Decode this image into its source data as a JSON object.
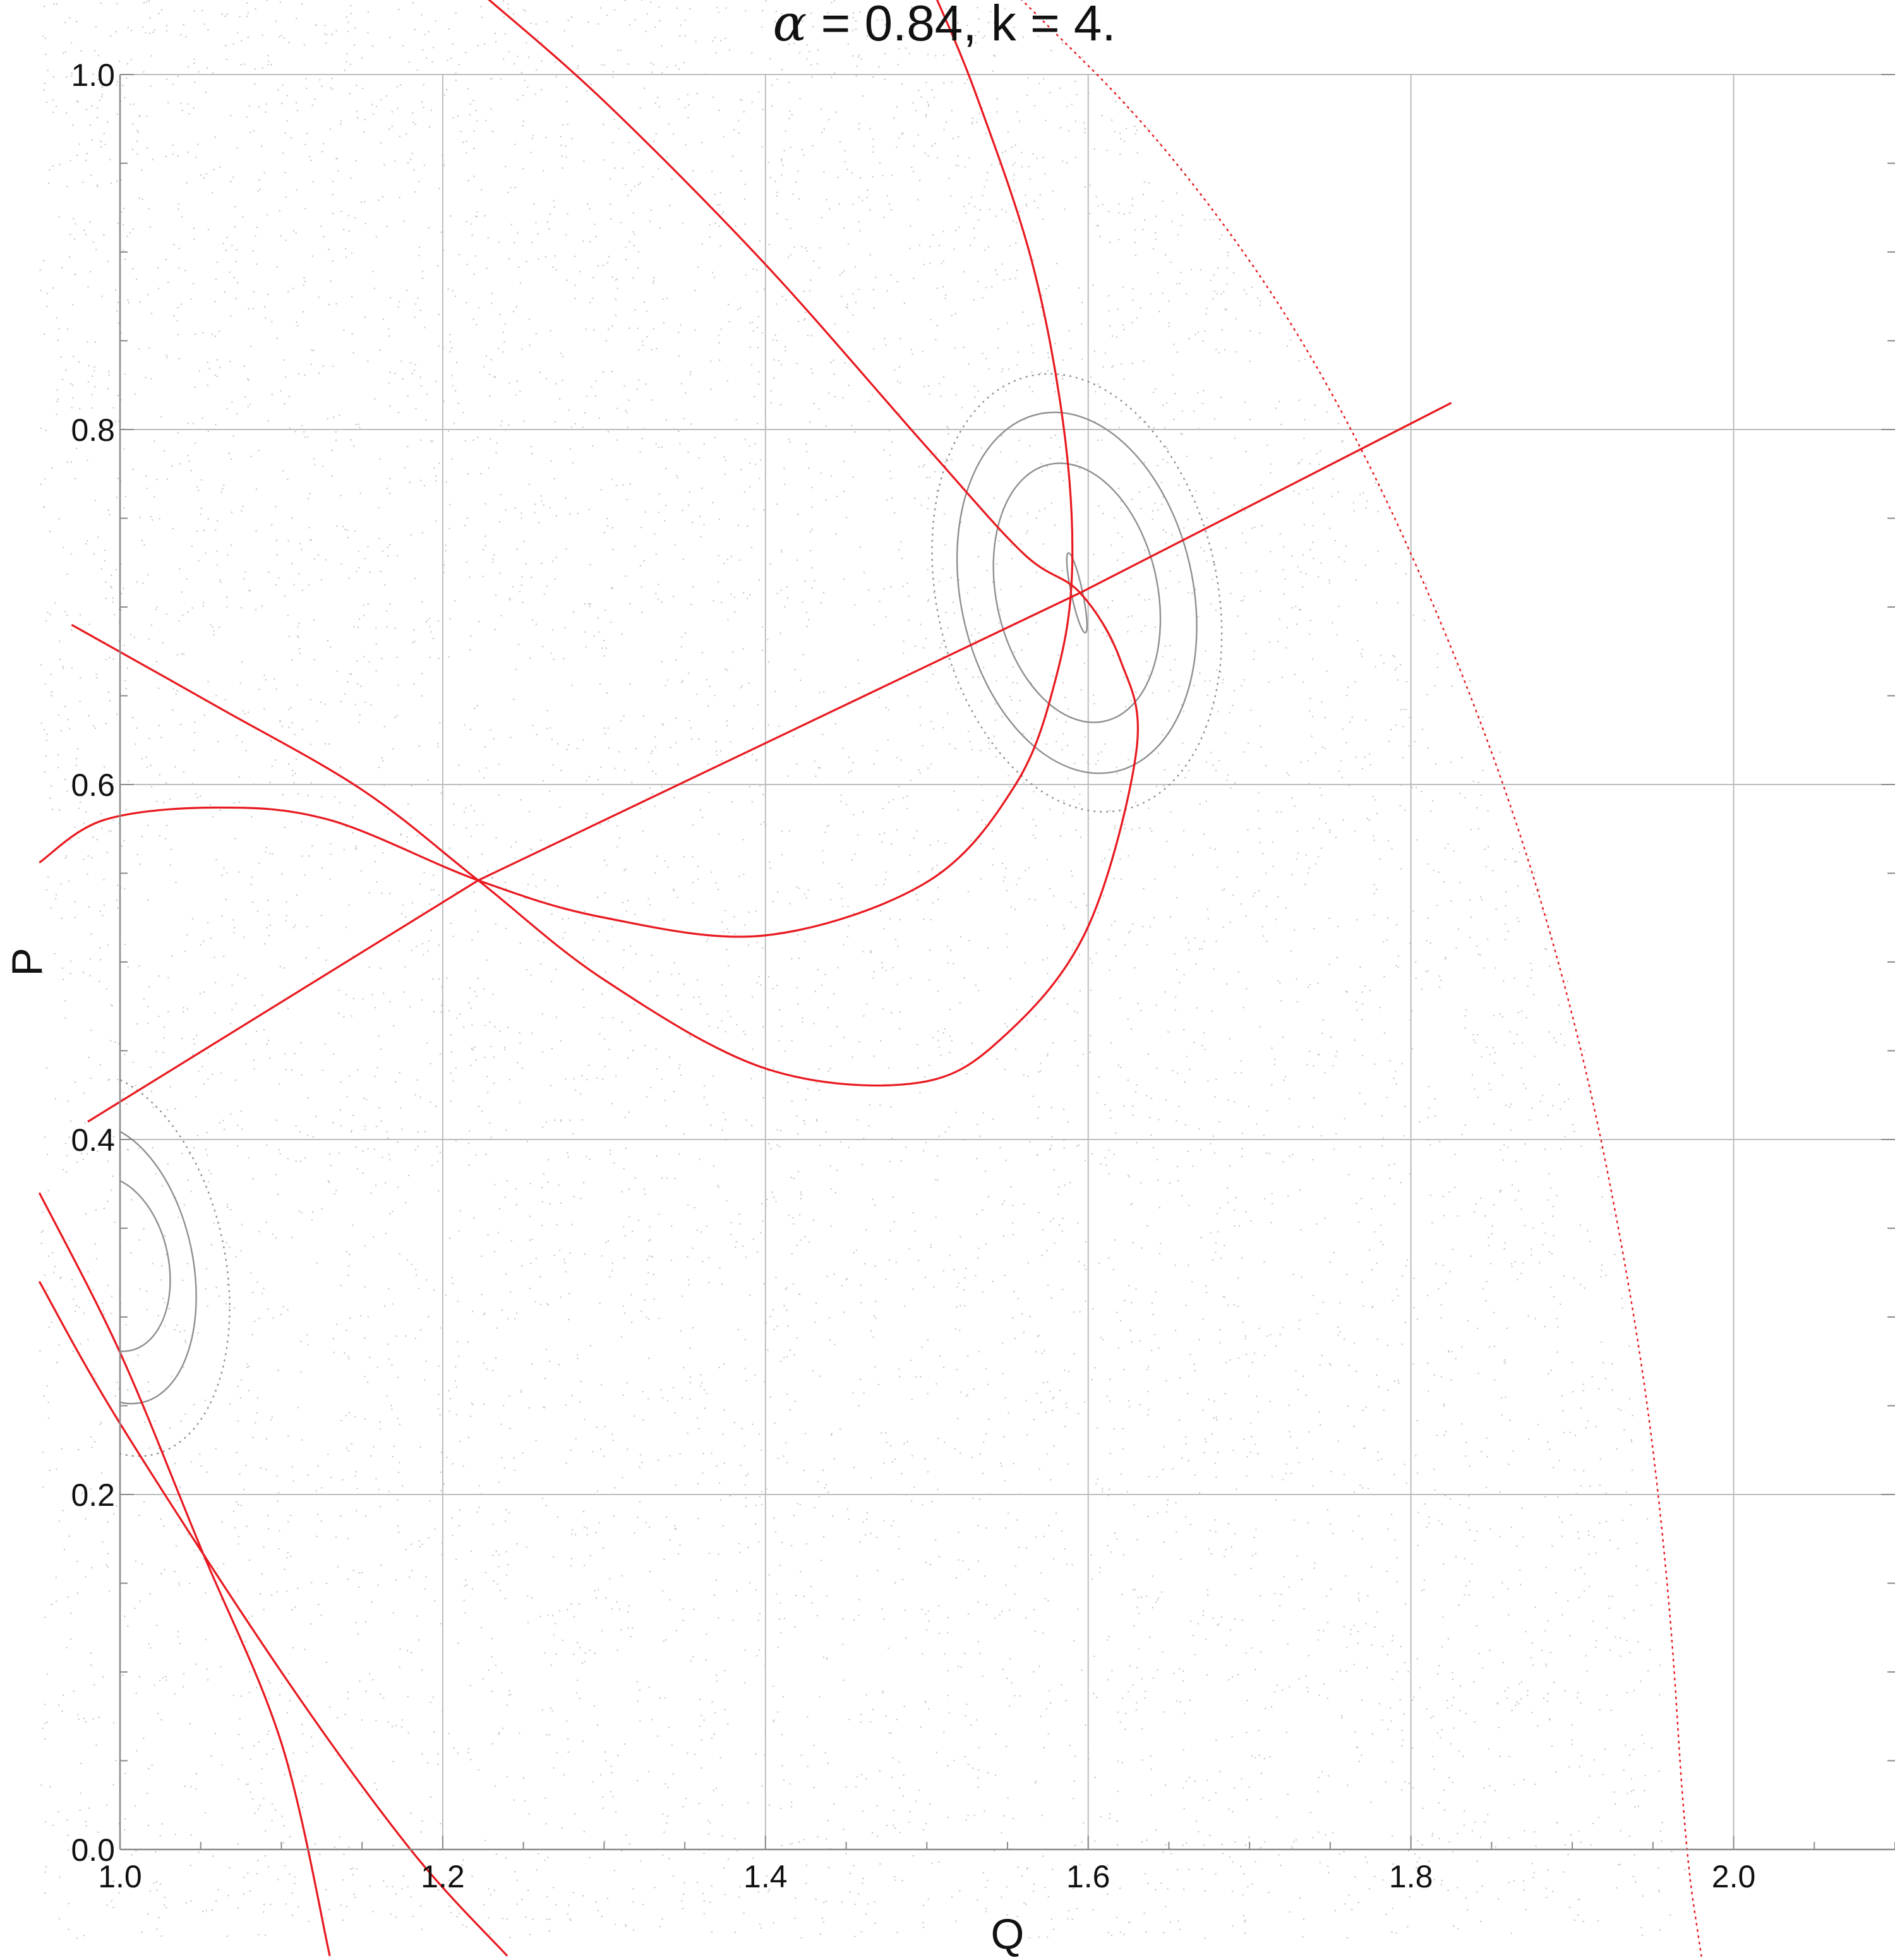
{
  "chart_data": {
    "type": "scatter",
    "title": {
      "symbol": "α",
      "rest": " = 0.84, k = 4."
    },
    "xlabel": "Q",
    "ylabel": "P",
    "xlim": [
      1.0,
      2.1
    ],
    "ylim": [
      0.0,
      1.0
    ],
    "x_ticks": [
      1.0,
      1.2,
      1.4,
      1.6,
      1.8,
      2.0
    ],
    "y_ticks": [
      0.0,
      0.2,
      0.4,
      0.6,
      0.8,
      1.0
    ],
    "x_tick_labels": [
      "1.0",
      "1.2",
      "1.4",
      "1.6",
      "1.8",
      "2.0"
    ],
    "y_tick_labels": [
      "0.0",
      "0.2",
      "0.4",
      "0.6",
      "0.8",
      "1.0"
    ],
    "grid": true,
    "colors": {
      "curve": "#e8191f",
      "grid": "#bdbdbd",
      "dots": "#9a9a9a",
      "contour": "#8f8f8f"
    },
    "chaotic_region": {
      "description_points": [
        [
          1.0,
          1.04
        ],
        [
          1.45,
          1.04
        ],
        [
          1.55,
          1.06
        ],
        [
          1.65,
          0.96
        ],
        [
          1.75,
          0.82
        ],
        [
          1.85,
          0.64
        ],
        [
          1.91,
          0.45
        ],
        [
          1.94,
          0.25
        ],
        [
          1.97,
          0.0
        ]
      ]
    },
    "separatrix_boundary": [
      [
        1.55,
        1.05
      ],
      [
        1.65,
        0.96
      ],
      [
        1.75,
        0.83
      ],
      [
        1.84,
        0.65
      ],
      [
        1.9,
        0.48
      ],
      [
        1.94,
        0.3
      ],
      [
        1.96,
        0.15
      ],
      [
        1.97,
        0.0
      ],
      [
        1.98,
        -0.06
      ]
    ],
    "line_series": [
      {
        "points": [
          [
            0.98,
            0.41
          ],
          [
            1.222,
            0.546
          ],
          [
            1.595,
            0.708
          ],
          [
            1.825,
            0.815
          ]
        ]
      },
      {
        "points": [
          [
            1.225,
            1.045
          ],
          [
            1.3,
            0.985
          ],
          [
            1.4,
            0.893
          ],
          [
            1.5,
            0.79
          ],
          [
            1.56,
            0.73
          ],
          [
            1.595,
            0.708
          ],
          [
            1.62,
            0.67
          ],
          [
            1.63,
            0.62
          ],
          [
            1.6,
            0.52
          ],
          [
            1.55,
            0.46
          ],
          [
            1.495,
            0.432
          ],
          [
            1.4,
            0.44
          ],
          [
            1.3,
            0.49
          ],
          [
            1.222,
            0.546
          ],
          [
            1.15,
            0.597
          ],
          [
            1.06,
            0.644
          ],
          [
            0.97,
            0.69
          ]
        ]
      },
      {
        "points": [
          [
            1.505,
            1.045
          ],
          [
            1.53,
            0.99
          ],
          [
            1.565,
            0.895
          ],
          [
            1.585,
            0.8
          ],
          [
            1.59,
            0.72
          ],
          [
            1.58,
            0.66
          ],
          [
            1.555,
            0.6
          ],
          [
            1.5,
            0.545
          ],
          [
            1.4,
            0.515
          ],
          [
            1.3,
            0.525
          ],
          [
            1.222,
            0.546
          ],
          [
            1.13,
            0.58
          ],
          [
            1.06,
            0.587
          ],
          [
            0.99,
            0.58
          ],
          [
            0.95,
            0.556
          ]
        ]
      },
      {
        "points": [
          [
            0.95,
            0.32
          ],
          [
            1.0,
            0.24
          ],
          [
            1.1,
            0.1
          ],
          [
            1.18,
            0.0
          ],
          [
            1.24,
            -0.06
          ]
        ]
      },
      {
        "points": [
          [
            0.95,
            0.37
          ],
          [
            1.0,
            0.28
          ],
          [
            1.05,
            0.17
          ],
          [
            1.1,
            0.06
          ],
          [
            1.13,
            -0.06
          ]
        ]
      }
    ],
    "islands": [
      {
        "center": [
          1.593,
          0.708
        ],
        "contours": [
          {
            "rx": 0.0035,
            "ry": 0.023
          },
          {
            "rx": 0.05,
            "ry": 0.074
          },
          {
            "rx": 0.072,
            "ry": 0.103
          },
          {
            "rx": 0.087,
            "ry": 0.125
          }
        ]
      },
      {
        "center": [
          0.995,
          0.33
        ],
        "contours": [
          {
            "rx": 0.035,
            "ry": 0.05
          },
          {
            "rx": 0.05,
            "ry": 0.08
          },
          {
            "rx": 0.07,
            "ry": 0.11
          }
        ]
      }
    ]
  }
}
